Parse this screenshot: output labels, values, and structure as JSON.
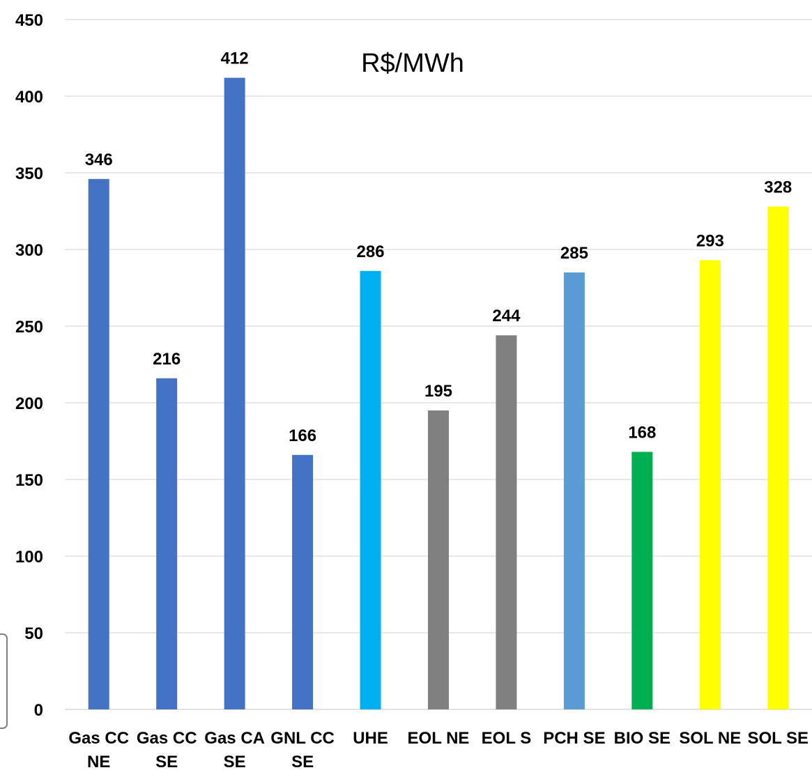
{
  "chart_data": {
    "type": "bar",
    "unit_label": "R$/MWh",
    "categories": [
      [
        "Gas CC",
        "NE"
      ],
      [
        "Gas CC",
        "SE"
      ],
      [
        "Gas CA",
        "SE"
      ],
      [
        "GNL CC",
        "SE"
      ],
      [
        "UHE"
      ],
      [
        "EOL NE"
      ],
      [
        "EOL S"
      ],
      [
        "PCH SE"
      ],
      [
        "BIO SE"
      ],
      [
        "SOL NE"
      ],
      [
        "SOL SE"
      ]
    ],
    "values": [
      346,
      216,
      412,
      166,
      286,
      195,
      244,
      285,
      168,
      293,
      328
    ],
    "data_labels": [
      "346",
      "216",
      "412",
      "166",
      "286",
      "195",
      "244",
      "285",
      "168",
      "293",
      "328"
    ],
    "colors": [
      "#4472c4",
      "#4472c4",
      "#4472c4",
      "#4472c4",
      "#00b0f0",
      "#808080",
      "#808080",
      "#5b9bd5",
      "#00b050",
      "#ffff00",
      "#ffff00"
    ],
    "ylim": [
      0,
      450
    ],
    "yticks": [
      0,
      50,
      100,
      150,
      200,
      250,
      300,
      350,
      400,
      450
    ],
    "ytick_labels": [
      "0",
      "50",
      "100",
      "150",
      "200",
      "250",
      "300",
      "350",
      "400",
      "450"
    ],
    "grid": true,
    "legend": "none"
  }
}
